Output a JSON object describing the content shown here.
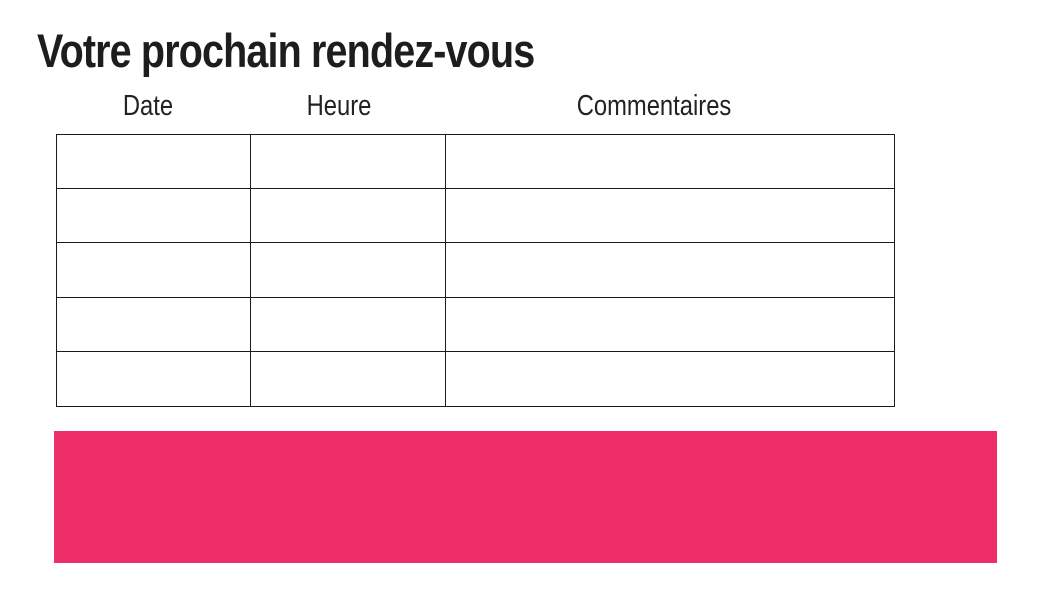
{
  "page": {
    "title": "Votre prochain rendez-vous",
    "background": "#ffffff"
  },
  "appointment_table": {
    "headers": [
      "Date",
      "Heure",
      "Commentaires"
    ],
    "row_count": 5,
    "column_count": 3,
    "rows": [
      [
        "",
        "",
        ""
      ],
      [
        "",
        "",
        ""
      ],
      [
        "",
        "",
        ""
      ],
      [
        "",
        "",
        ""
      ],
      [
        "",
        "",
        ""
      ]
    ]
  },
  "banner": {
    "color": "#ED2E68"
  },
  "colors": {
    "text": "#1d1d1b",
    "header_text": "#222222",
    "table_border": "#1b1b1b",
    "accent_pink": "#ED2E68"
  }
}
